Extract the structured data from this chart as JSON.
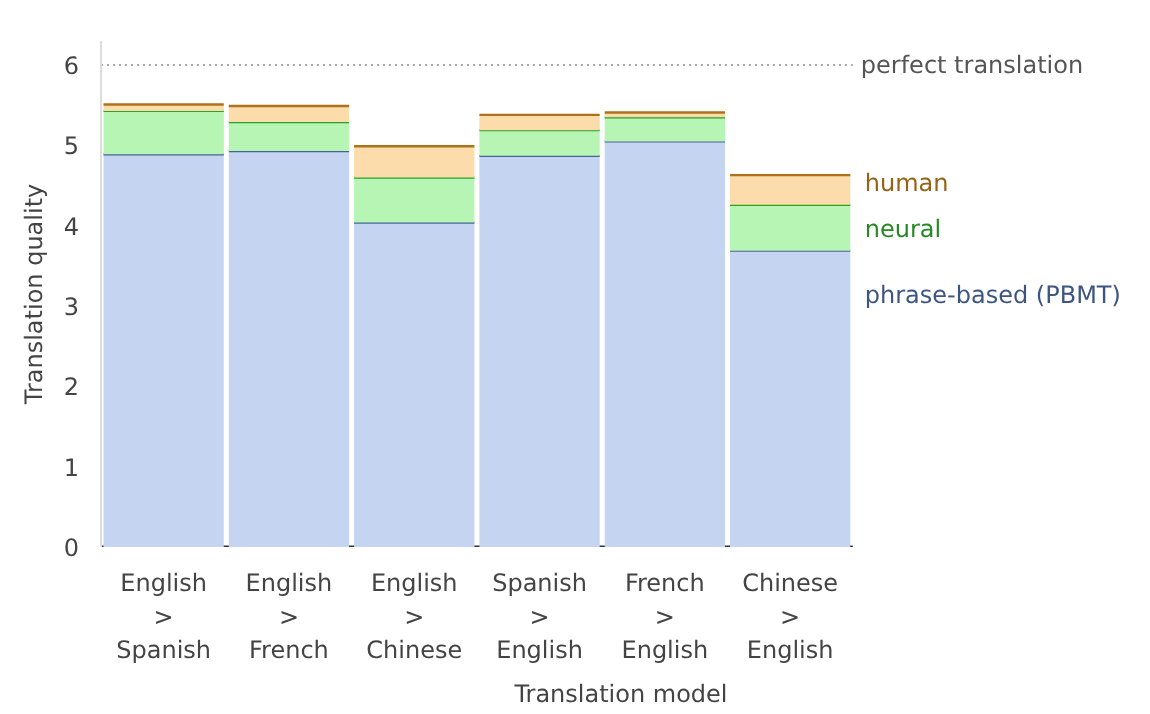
{
  "chart_data": {
    "type": "bar",
    "stacked": true,
    "categories": [
      "English\n>\nSpanish",
      "English\n>\nFrench",
      "English\n>\nChinese",
      "Spanish\n>\nEnglish",
      "French\n>\nEnglish",
      "Chinese\n>\nEnglish"
    ],
    "series": [
      {
        "name": "phrase-based (PBMT)",
        "color": "#c5d4f0",
        "values": [
          4.89,
          4.93,
          4.04,
          4.87,
          5.05,
          3.69
        ]
      },
      {
        "name": "neural",
        "color": "#b6f5b3",
        "values": [
          0.54,
          0.36,
          0.56,
          0.32,
          0.3,
          0.57
        ]
      },
      {
        "name": "human",
        "color": "#fddcac",
        "values": [
          0.08,
          0.2,
          0.39,
          0.19,
          0.06,
          0.37
        ]
      }
    ],
    "ylim": [
      0,
      6.3
    ],
    "yticks": [
      0,
      1,
      2,
      3,
      4,
      5,
      6
    ],
    "grid": false,
    "xlabel": "Translation model",
    "ylabel": "Translation quality",
    "ref_lines": [
      {
        "axis": "y",
        "value": 6,
        "label": "perfect translation",
        "color": "#aaaaaa",
        "line_style": "dotted"
      }
    ]
  }
}
